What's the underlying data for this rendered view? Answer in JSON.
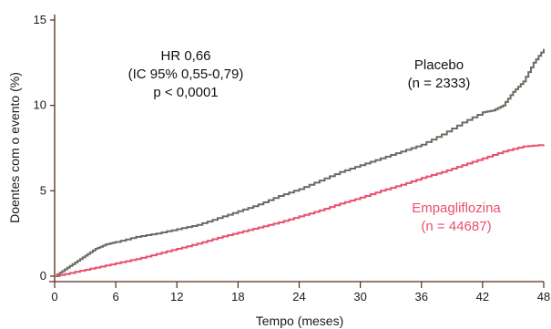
{
  "chart_data": {
    "type": "line",
    "xlabel": "Tempo (meses)",
    "ylabel": "Doentes com o evento (%)",
    "xlim": [
      0,
      48
    ],
    "ylim": [
      0,
      15
    ],
    "x_ticks": [
      "0",
      "6",
      "12",
      "18",
      "24",
      "30",
      "36",
      "42",
      "48"
    ],
    "y_ticks": [
      "0",
      "5",
      "10",
      "15"
    ],
    "grid": false,
    "series": [
      {
        "name": "Placebo",
        "color": "#6b6b62",
        "x": [
          0,
          1,
          2,
          3,
          4,
          5,
          6,
          8,
          10,
          12,
          14,
          16,
          18,
          20,
          22,
          24,
          26,
          28,
          30,
          32,
          34,
          36,
          38,
          40,
          42,
          43,
          44,
          45,
          46,
          47,
          48
        ],
        "y": [
          0,
          0.4,
          0.8,
          1.2,
          1.6,
          1.85,
          2.0,
          2.3,
          2.5,
          2.75,
          3.0,
          3.4,
          3.8,
          4.2,
          4.7,
          5.1,
          5.6,
          6.1,
          6.5,
          6.9,
          7.3,
          7.7,
          8.3,
          9.0,
          9.6,
          9.7,
          10.0,
          10.8,
          11.4,
          12.5,
          13.3
        ]
      },
      {
        "name": "Empagliflozina",
        "color": "#e8506e",
        "x": [
          0,
          2,
          4,
          6,
          8,
          10,
          12,
          14,
          16,
          18,
          20,
          22,
          24,
          26,
          28,
          30,
          32,
          34,
          36,
          38,
          40,
          42,
          44,
          46,
          48
        ],
        "y": [
          0,
          0.25,
          0.5,
          0.75,
          1.0,
          1.3,
          1.6,
          1.9,
          2.25,
          2.55,
          2.85,
          3.15,
          3.5,
          3.85,
          4.25,
          4.6,
          5.0,
          5.35,
          5.75,
          6.1,
          6.5,
          6.9,
          7.3,
          7.6,
          7.7
        ]
      }
    ],
    "annotations": {
      "stats": [
        "HR 0,66",
        "(IC 95% 0,55-0,79)",
        "p < 0,0001"
      ],
      "placebo": [
        "Placebo",
        "(n = 2333)"
      ],
      "empa": [
        "Empagliflozina",
        "(n = 44687)"
      ]
    }
  }
}
